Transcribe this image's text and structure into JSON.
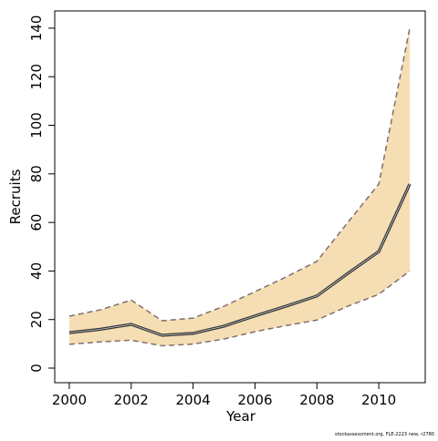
{
  "chart_data": {
    "type": "line",
    "x_label": "Year",
    "y_label": "Recruits",
    "footnote": "stockassessment.org, FLE-2223  new, r2780",
    "x": [
      2000,
      2001,
      2002,
      2003,
      2004,
      2005,
      2006,
      2007,
      2008,
      2009,
      2010,
      2011
    ],
    "series": [
      {
        "color": "#333333",
        "values": [
          14.6,
          16,
          18,
          13.5,
          14.3,
          17.3,
          21.5,
          25.5,
          29.7,
          39,
          48,
          75.8
        ]
      }
    ],
    "band": {
      "color": "#f5deb3",
      "line_color": "#7f6f6f",
      "upper": [
        21.4,
        24,
        28,
        19.5,
        20.6,
        25.5,
        31.5,
        37.5,
        44,
        60,
        75.8,
        140
      ],
      "lower": [
        9.8,
        10.8,
        11.5,
        9.2,
        9.9,
        12,
        15,
        17.5,
        19.8,
        25.5,
        30.4,
        40
      ]
    },
    "xlim": [
      1999.53,
      2011.5
    ],
    "xticks": [
      2000,
      2002,
      2004,
      2006,
      2008,
      2010
    ],
    "ylim": [
      -6,
      147.1
    ],
    "yticks": [
      0,
      20,
      40,
      60,
      80,
      100,
      120,
      140
    ]
  }
}
